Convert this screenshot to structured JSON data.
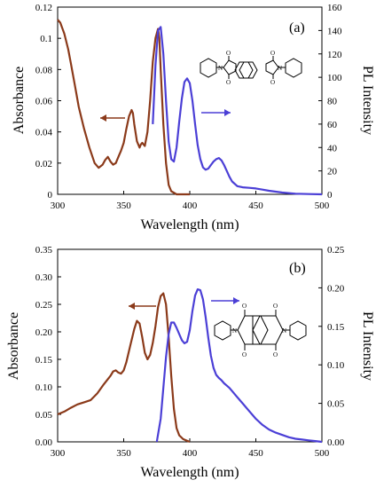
{
  "chart_data": [
    {
      "type": "line",
      "panel_label": "(a)",
      "xlabel": "Wavelength (nm)",
      "ylabel_left": "Absorbance",
      "ylabel_right": "PL Intensity",
      "xlim": [
        300,
        500
      ],
      "ylim_left": [
        0,
        0.12
      ],
      "ylim_right": [
        0,
        160
      ],
      "x_ticks": [
        "300",
        "350",
        "400",
        "450",
        "500"
      ],
      "y_ticks_left": [
        "0",
        "0.02",
        "0.04",
        "0.06",
        "0.08",
        "0.1",
        "0.12"
      ],
      "y_ticks_right": [
        "0",
        "20",
        "40",
        "60",
        "80",
        "100",
        "120",
        "140",
        "160"
      ],
      "colors": {
        "absorbance": "#8B3A1A",
        "pl": "#4B3FD6"
      },
      "series": [
        {
          "axis": "left",
          "x": [
            300,
            302,
            305,
            308,
            310,
            313,
            316,
            320,
            324,
            328,
            331,
            334,
            336,
            338,
            340,
            342,
            344,
            346,
            348,
            350,
            352,
            354,
            356,
            357,
            358,
            360,
            362,
            363,
            364,
            366,
            368,
            370,
            372,
            374,
            376,
            377,
            378,
            380,
            382,
            384,
            386,
            390,
            400
          ],
          "values": [
            0.112,
            0.11,
            0.103,
            0.093,
            0.084,
            0.07,
            0.056,
            0.042,
            0.03,
            0.02,
            0.017,
            0.019,
            0.022,
            0.024,
            0.021,
            0.019,
            0.02,
            0.024,
            0.028,
            0.033,
            0.042,
            0.05,
            0.054,
            0.052,
            0.045,
            0.034,
            0.03,
            0.032,
            0.033,
            0.031,
            0.04,
            0.06,
            0.085,
            0.1,
            0.106,
            0.1,
            0.08,
            0.045,
            0.02,
            0.006,
            0.002,
            0.0,
            0.0
          ]
        },
        {
          "axis": "right",
          "x": [
            372,
            374,
            376,
            378,
            380,
            382,
            384,
            386,
            388,
            390,
            392,
            394,
            396,
            398,
            400,
            402,
            404,
            406,
            408,
            410,
            412,
            414,
            416,
            418,
            420,
            422,
            424,
            426,
            428,
            430,
            432,
            436,
            440,
            445,
            450,
            455,
            460,
            470,
            480,
            490,
            500
          ],
          "values": [
            60,
            110,
            140,
            143,
            120,
            80,
            45,
            30,
            28,
            40,
            62,
            82,
            96,
            99,
            95,
            80,
            60,
            42,
            30,
            23,
            21,
            22,
            25,
            28,
            30,
            31,
            29,
            25,
            20,
            15,
            11,
            7,
            6,
            5.5,
            5,
            4,
            3,
            1.5,
            0.5,
            0.2,
            0
          ]
        }
      ],
      "annotation": "molecular structure"
    },
    {
      "type": "line",
      "panel_label": "(b)",
      "xlabel": "Wavelength (nm)",
      "ylabel_left": "Absorbance",
      "ylabel_right": "PL Intensity",
      "xlim": [
        300,
        500
      ],
      "ylim_left": [
        0,
        0.35
      ],
      "ylim_right": [
        0,
        0.25
      ],
      "x_ticks": [
        "300",
        "350",
        "400",
        "450",
        "500"
      ],
      "y_ticks_left": [
        "0.00",
        "0.05",
        "0.10",
        "0.15",
        "0.20",
        "0.25",
        "0.30",
        "0.35"
      ],
      "y_ticks_right": [
        "0.00",
        "0.05",
        "0.10",
        "0.15",
        "0.20",
        "0.25"
      ],
      "colors": {
        "absorbance": "#8B3A1A",
        "pl": "#4B3FD6"
      },
      "series": [
        {
          "axis": "left",
          "x": [
            300,
            305,
            310,
            315,
            320,
            325,
            330,
            335,
            340,
            342,
            344,
            346,
            348,
            350,
            352,
            355,
            358,
            360,
            362,
            364,
            366,
            368,
            370,
            372,
            374,
            376,
            378,
            380,
            382,
            384,
            386,
            388,
            390,
            392,
            395,
            398,
            400
          ],
          "values": [
            0.05,
            0.055,
            0.062,
            0.068,
            0.072,
            0.076,
            0.088,
            0.105,
            0.12,
            0.128,
            0.13,
            0.126,
            0.124,
            0.13,
            0.145,
            0.175,
            0.205,
            0.22,
            0.215,
            0.19,
            0.162,
            0.15,
            0.158,
            0.18,
            0.21,
            0.245,
            0.265,
            0.27,
            0.25,
            0.19,
            0.12,
            0.06,
            0.025,
            0.012,
            0.005,
            0.002,
            0.0
          ]
        },
        {
          "axis": "right",
          "x": [
            375,
            378,
            380,
            382,
            384,
            386,
            388,
            390,
            392,
            394,
            396,
            398,
            400,
            402,
            404,
            406,
            408,
            410,
            412,
            414,
            416,
            418,
            420,
            422,
            424,
            426,
            428,
            430,
            432,
            435,
            440,
            445,
            450,
            455,
            460,
            465,
            470,
            475,
            480,
            485,
            490,
            495,
            500
          ],
          "values": [
            0.0,
            0.03,
            0.07,
            0.11,
            0.14,
            0.155,
            0.155,
            0.148,
            0.14,
            0.132,
            0.128,
            0.13,
            0.145,
            0.17,
            0.19,
            0.198,
            0.197,
            0.185,
            0.162,
            0.135,
            0.112,
            0.096,
            0.087,
            0.083,
            0.08,
            0.076,
            0.073,
            0.07,
            0.066,
            0.06,
            0.05,
            0.04,
            0.03,
            0.022,
            0.016,
            0.012,
            0.009,
            0.006,
            0.004,
            0.003,
            0.002,
            0.001,
            0.0
          ]
        }
      ],
      "annotation": "molecular structure"
    }
  ]
}
